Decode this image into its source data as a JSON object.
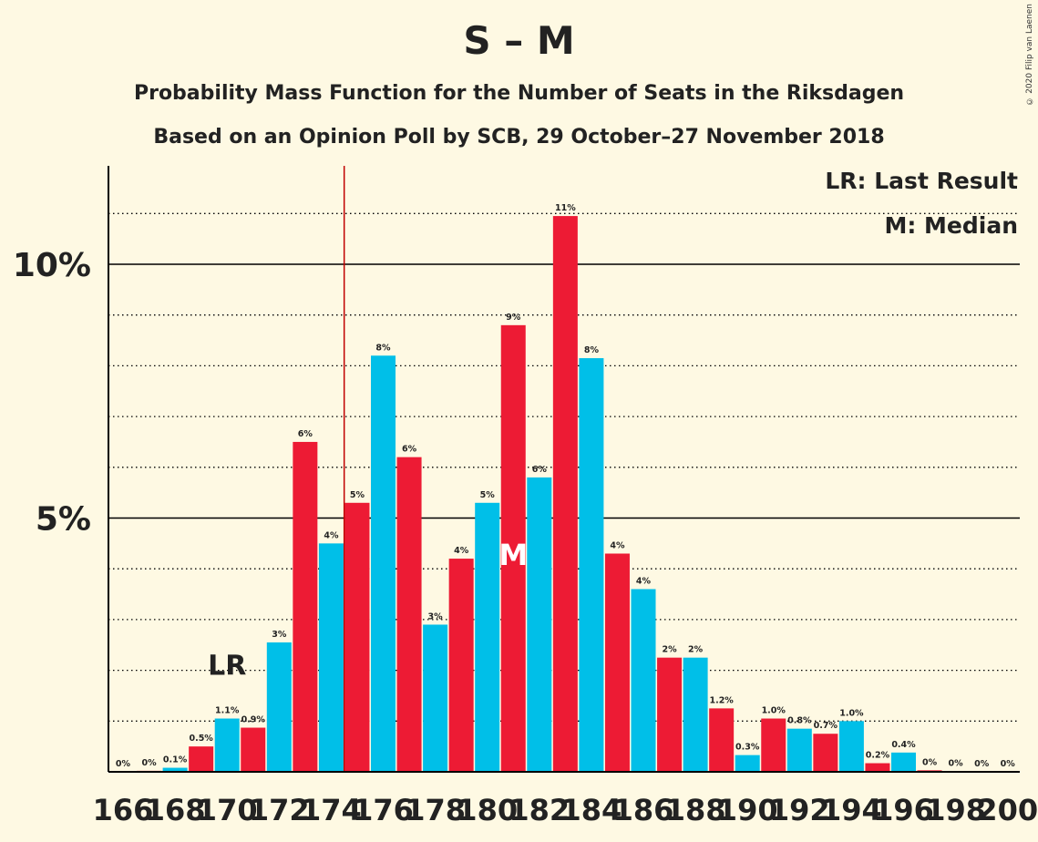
{
  "chart_data": {
    "type": "bar",
    "title": "S – M",
    "subtitle_1": "Probability Mass Function for the Number of Seats in the Riksdagen",
    "subtitle_2": "Based on an Opinion Poll by SCB, 29 October–27 November 2018",
    "copyright": "© 2020 Filip van Laenen",
    "legend_lr": "LR: Last Result",
    "legend_m": "M: Median",
    "lr_marker": "LR",
    "m_marker": "M",
    "ylim": [
      0,
      12
    ],
    "y_ticks": [
      {
        "value": 5,
        "label": "5%"
      },
      {
        "value": 10,
        "label": "10%"
      }
    ],
    "x": [
      166,
      167,
      168,
      169,
      170,
      171,
      172,
      173,
      174,
      175,
      176,
      177,
      178,
      179,
      180,
      181,
      182,
      183,
      184,
      185,
      186,
      187,
      188,
      189,
      190,
      191,
      192,
      193,
      194,
      195,
      196,
      197,
      198,
      199,
      200
    ],
    "values": [
      0,
      0.02,
      0.08,
      0.5,
      1.05,
      0.87,
      2.55,
      6.5,
      4.5,
      5.3,
      8.2,
      6.2,
      2.9,
      4.2,
      5.3,
      8.8,
      5.8,
      10.95,
      8.15,
      4.3,
      3.6,
      2.25,
      2.25,
      1.25,
      0.33,
      1.05,
      0.85,
      0.75,
      1.0,
      0.17,
      0.38,
      0.03,
      0.01,
      0,
      0
    ],
    "labels": [
      "0%",
      "0%",
      "0.1%",
      "0.5%",
      "1.1%",
      "0.9%",
      "3%",
      "6%",
      "4%",
      "5%",
      "8%",
      "6%",
      "3%",
      "4%",
      "5%",
      "9%",
      "6%",
      "11%",
      "8%",
      "4%",
      "4%",
      "2%",
      "2%",
      "1.2%",
      "0.3%",
      "1.0%",
      "0.8%",
      "0.7%",
      "1.0%",
      "0.2%",
      "0.4%",
      "0%",
      "0%",
      "0%",
      "0%"
    ],
    "x_tick_labels": [
      "166",
      "168",
      "170",
      "172",
      "174",
      "176",
      "178",
      "180",
      "182",
      "184",
      "186",
      "188",
      "190",
      "192",
      "194",
      "196",
      "198",
      "200"
    ],
    "last_result_seat": 170,
    "median_seat": 181,
    "majority_line_seat": 174.5,
    "colors": {
      "s": "#00BFE8",
      "m": "#ED1B34",
      "majority": "#C00000",
      "grid": "#000000",
      "text": "#222222",
      "background": "#FEF9E3"
    }
  }
}
